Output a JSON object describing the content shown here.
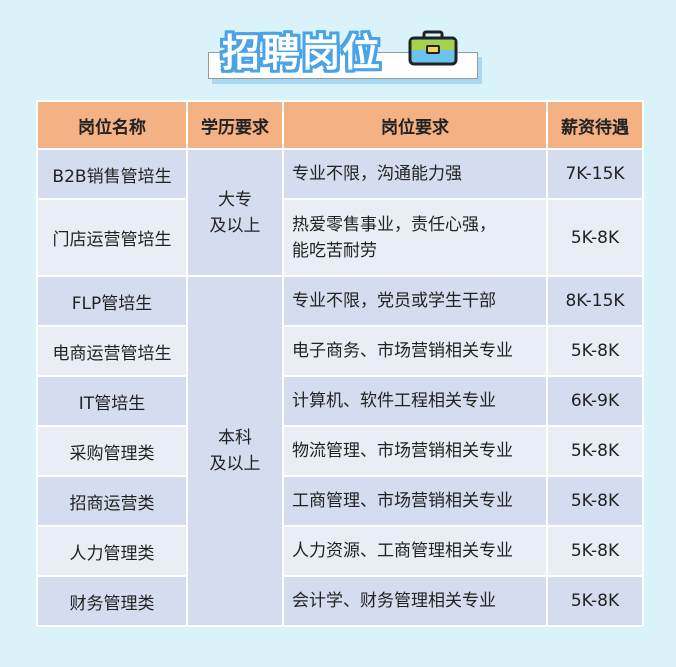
{
  "title": "招聘岗位",
  "icon": "briefcase-icon",
  "colors": {
    "background": "#daf3fb",
    "header": "#f4b183",
    "row_dark": "#d3ddef",
    "row_light": "#e9eef6",
    "title_outline": "#4aa3e6"
  },
  "table": {
    "headers": [
      "岗位名称",
      "学历要求",
      "岗位要求",
      "薪资待遇"
    ],
    "education_groups": [
      {
        "line1": "大专",
        "line2": "及以上"
      },
      {
        "line1": "本科",
        "line2": "及以上"
      }
    ],
    "rows": [
      {
        "name": "B2B销售管培生",
        "req": "专业不限，沟通能力强",
        "salary": "7K-15K"
      },
      {
        "name": "门店运营管培生",
        "req": "热爱零售事业，责任心强，",
        "req2": "能吃苦耐劳",
        "salary": "5K-8K"
      },
      {
        "name": "FLP管培生",
        "req": "专业不限，党员或学生干部",
        "salary": "8K-15K"
      },
      {
        "name": "电商运营管培生",
        "req": "电子商务、市场营销相关专业",
        "salary": "5K-8K"
      },
      {
        "name": "IT管培生",
        "req": "计算机、软件工程相关专业",
        "salary": "6K-9K"
      },
      {
        "name": "采购管理类",
        "req": "物流管理、市场营销相关专业",
        "salary": "5K-8K"
      },
      {
        "name": "招商运营类",
        "req": "工商管理、市场营销相关专业",
        "salary": "5K-8K"
      },
      {
        "name": "人力管理类",
        "req": "人力资源、工商管理相关专业",
        "salary": "5K-8K"
      },
      {
        "name": "财务管理类",
        "req": "会计学、财务管理相关专业",
        "salary": "5K-8K"
      }
    ]
  }
}
